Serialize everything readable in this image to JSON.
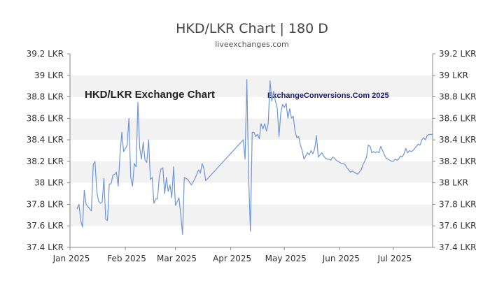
{
  "page": {
    "title": "HKD/LKR Chart | 180 D",
    "subtitle": "liveexchanges.com",
    "watermark_left": "HKD/LKR Exchange Chart",
    "watermark_right": "ExchangeConversions.Com 2025"
  },
  "colors": {
    "line": "#6f95d6",
    "band": "#f2f2f2",
    "axis": "#888888",
    "text": "#333333"
  },
  "chart_data": {
    "type": "line",
    "title": "HKD/LKR Chart | 180 D",
    "xlabel": "",
    "ylabel": "",
    "ylim": [
      37.4,
      39.2
    ],
    "y_ticks": [
      39.2,
      39.0,
      38.8,
      38.6,
      38.4,
      38.2,
      38.0,
      37.8,
      37.6,
      37.4
    ],
    "y_tick_labels": [
      "39.2 LKR",
      "39 LKR",
      "38.8 LKR",
      "38.6 LKR",
      "38.4 LKR",
      "38.2 LKR",
      "38 LKR",
      "37.8 LKR",
      "37.6 LKR",
      "37.4 LKR"
    ],
    "x_ticks": [
      "2025-01-01",
      "2025-02-01",
      "2025-03-01",
      "2025-04-01",
      "2025-05-01",
      "2025-06-01",
      "2025-07-01"
    ],
    "x_tick_labels": [
      "Jan 2025",
      "Feb 2025",
      "Mar 2025",
      "Apr 2025",
      "May 2025",
      "Jun 2025",
      "Jul 2025"
    ],
    "x_range": [
      "2025-01-05",
      "2025-07-23"
    ],
    "grid": "alternating horizontal bands",
    "series": [
      {
        "points": [
          [
            "2025-01-05",
            37.76
          ],
          [
            "2025-01-06",
            37.8
          ],
          [
            "2025-01-07",
            37.65
          ],
          [
            "2025-01-08",
            37.59
          ],
          [
            "2025-01-09",
            37.93
          ],
          [
            "2025-01-10",
            37.8
          ],
          [
            "2025-01-12",
            37.76
          ],
          [
            "2025-01-13",
            37.74
          ],
          [
            "2025-01-14",
            38.17
          ],
          [
            "2025-01-15",
            38.2
          ],
          [
            "2025-01-16",
            37.92
          ],
          [
            "2025-01-17",
            37.83
          ],
          [
            "2025-01-18",
            37.81
          ],
          [
            "2025-01-19",
            37.82
          ],
          [
            "2025-01-20",
            38.04
          ],
          [
            "2025-01-21",
            37.66
          ],
          [
            "2025-01-22",
            37.65
          ],
          [
            "2025-01-23",
            37.99
          ],
          [
            "2025-01-24",
            37.99
          ],
          [
            "2025-01-25",
            38.07
          ],
          [
            "2025-01-26",
            38.08
          ],
          [
            "2025-01-27",
            38.1
          ],
          [
            "2025-01-28",
            37.97
          ],
          [
            "2025-01-29",
            38.26
          ],
          [
            "2025-01-30",
            38.47
          ],
          [
            "2025-01-31",
            38.29
          ],
          [
            "2025-02-01",
            38.32
          ],
          [
            "2025-02-02",
            38.35
          ],
          [
            "2025-02-03",
            38.6
          ],
          [
            "2025-02-04",
            38.05
          ],
          [
            "2025-02-05",
            37.97
          ],
          [
            "2025-02-06",
            38.18
          ],
          [
            "2025-02-07",
            38.15
          ],
          [
            "2025-02-08",
            38.75
          ],
          [
            "2025-02-09",
            38.33
          ],
          [
            "2025-02-10",
            38.22
          ],
          [
            "2025-02-11",
            38.38
          ],
          [
            "2025-02-12",
            38.21
          ],
          [
            "2025-02-13",
            38.19
          ],
          [
            "2025-02-14",
            38.4
          ],
          [
            "2025-02-15",
            38.03
          ],
          [
            "2025-02-16",
            38.05
          ],
          [
            "2025-02-17",
            37.81
          ],
          [
            "2025-02-18",
            37.85
          ],
          [
            "2025-02-19",
            37.85
          ],
          [
            "2025-02-20",
            38.06
          ],
          [
            "2025-02-21",
            38.13
          ],
          [
            "2025-02-22",
            38.14
          ],
          [
            "2025-02-23",
            37.9
          ],
          [
            "2025-02-24",
            38.05
          ],
          [
            "2025-02-25",
            37.92
          ],
          [
            "2025-02-26",
            37.98
          ],
          [
            "2025-02-27",
            37.86
          ],
          [
            "2025-02-28",
            38.15
          ],
          [
            "2025-03-01",
            37.79
          ],
          [
            "2025-03-03",
            37.86
          ],
          [
            "2025-03-04",
            37.7
          ],
          [
            "2025-03-05",
            37.52
          ],
          [
            "2025-03-06",
            38.05
          ],
          [
            "2025-03-08",
            38.03
          ],
          [
            "2025-03-10",
            37.98
          ],
          [
            "2025-03-12",
            38.04
          ],
          [
            "2025-03-14",
            38.12
          ],
          [
            "2025-03-15",
            38.09
          ],
          [
            "2025-03-16",
            38.18
          ],
          [
            "2025-03-17",
            38.13
          ],
          [
            "2025-03-18",
            38.02
          ],
          [
            "2025-04-08",
            38.4
          ],
          [
            "2025-04-09",
            38.22
          ],
          [
            "2025-04-10",
            38.96
          ],
          [
            "2025-04-11",
            38.05
          ],
          [
            "2025-04-12",
            37.55
          ],
          [
            "2025-04-13",
            38.47
          ],
          [
            "2025-04-14",
            38.47
          ],
          [
            "2025-04-15",
            38.43
          ],
          [
            "2025-04-16",
            38.45
          ],
          [
            "2025-04-17",
            38.41
          ],
          [
            "2025-04-18",
            38.55
          ],
          [
            "2025-04-19",
            38.5
          ],
          [
            "2025-04-20",
            38.55
          ],
          [
            "2025-04-21",
            38.48
          ],
          [
            "2025-04-22",
            38.55
          ],
          [
            "2025-04-23",
            38.95
          ],
          [
            "2025-04-24",
            38.76
          ],
          [
            "2025-04-25",
            38.85
          ],
          [
            "2025-04-26",
            38.76
          ],
          [
            "2025-04-27",
            38.7
          ],
          [
            "2025-04-28",
            38.43
          ],
          [
            "2025-04-29",
            38.65
          ],
          [
            "2025-04-30",
            38.73
          ],
          [
            "2025-05-01",
            38.7
          ],
          [
            "2025-05-02",
            38.74
          ],
          [
            "2025-05-03",
            38.6
          ],
          [
            "2025-05-04",
            38.69
          ],
          [
            "2025-05-05",
            38.6
          ],
          [
            "2025-05-06",
            38.62
          ],
          [
            "2025-05-07",
            38.48
          ],
          [
            "2025-05-08",
            38.42
          ],
          [
            "2025-05-09",
            38.43
          ],
          [
            "2025-05-10",
            38.35
          ],
          [
            "2025-05-11",
            38.3
          ],
          [
            "2025-05-12",
            38.22
          ],
          [
            "2025-05-13",
            38.25
          ],
          [
            "2025-05-14",
            38.28
          ],
          [
            "2025-05-15",
            38.26
          ],
          [
            "2025-05-16",
            38.3
          ],
          [
            "2025-05-17",
            38.27
          ],
          [
            "2025-05-18",
            38.32
          ],
          [
            "2025-05-19",
            38.44
          ],
          [
            "2025-05-20",
            38.24
          ],
          [
            "2025-05-21",
            38.26
          ],
          [
            "2025-05-22",
            38.28
          ],
          [
            "2025-05-23",
            38.25
          ],
          [
            "2025-05-24",
            38.23
          ],
          [
            "2025-05-25",
            38.22
          ],
          [
            "2025-05-26",
            38.22
          ],
          [
            "2025-05-27",
            38.21
          ],
          [
            "2025-05-28",
            38.24
          ],
          [
            "2025-05-29",
            38.23
          ],
          [
            "2025-05-30",
            38.21
          ],
          [
            "2025-05-31",
            38.2
          ],
          [
            "2025-06-01",
            38.19
          ],
          [
            "2025-06-02",
            38.18
          ],
          [
            "2025-06-03",
            38.18
          ],
          [
            "2025-06-04",
            38.17
          ],
          [
            "2025-06-05",
            38.14
          ],
          [
            "2025-06-06",
            38.12
          ],
          [
            "2025-06-07",
            38.1
          ],
          [
            "2025-06-08",
            38.11
          ],
          [
            "2025-06-09",
            38.1
          ],
          [
            "2025-06-10",
            38.09
          ],
          [
            "2025-06-11",
            38.08
          ],
          [
            "2025-06-12",
            38.1
          ],
          [
            "2025-06-13",
            38.12
          ],
          [
            "2025-06-14",
            38.17
          ],
          [
            "2025-06-15",
            38.2
          ],
          [
            "2025-06-16",
            38.24
          ],
          [
            "2025-06-17",
            38.35
          ],
          [
            "2025-06-18",
            38.34
          ],
          [
            "2025-06-19",
            38.28
          ],
          [
            "2025-06-20",
            38.29
          ],
          [
            "2025-06-21",
            38.28
          ],
          [
            "2025-06-22",
            38.29
          ],
          [
            "2025-06-23",
            38.28
          ],
          [
            "2025-06-24",
            38.34
          ],
          [
            "2025-06-25",
            38.3
          ],
          [
            "2025-06-26",
            38.26
          ],
          [
            "2025-06-27",
            38.23
          ],
          [
            "2025-06-28",
            38.22
          ],
          [
            "2025-06-29",
            38.21
          ],
          [
            "2025-06-30",
            38.2
          ],
          [
            "2025-07-01",
            38.2
          ],
          [
            "2025-07-02",
            38.22
          ],
          [
            "2025-07-03",
            38.21
          ],
          [
            "2025-07-04",
            38.22
          ],
          [
            "2025-07-05",
            38.25
          ],
          [
            "2025-07-06",
            38.24
          ],
          [
            "2025-07-07",
            38.27
          ],
          [
            "2025-07-08",
            38.32
          ],
          [
            "2025-07-09",
            38.28
          ],
          [
            "2025-07-10",
            38.3
          ],
          [
            "2025-07-11",
            38.29
          ],
          [
            "2025-07-12",
            38.3
          ],
          [
            "2025-07-13",
            38.32
          ],
          [
            "2025-07-14",
            38.34
          ],
          [
            "2025-07-15",
            38.36
          ],
          [
            "2025-07-16",
            38.35
          ],
          [
            "2025-07-17",
            38.4
          ],
          [
            "2025-07-18",
            38.42
          ],
          [
            "2025-07-19",
            38.4
          ],
          [
            "2025-07-20",
            38.44
          ],
          [
            "2025-07-21",
            38.45
          ],
          [
            "2025-07-22",
            38.45
          ],
          [
            "2025-07-23",
            38.45
          ]
        ]
      }
    ]
  }
}
